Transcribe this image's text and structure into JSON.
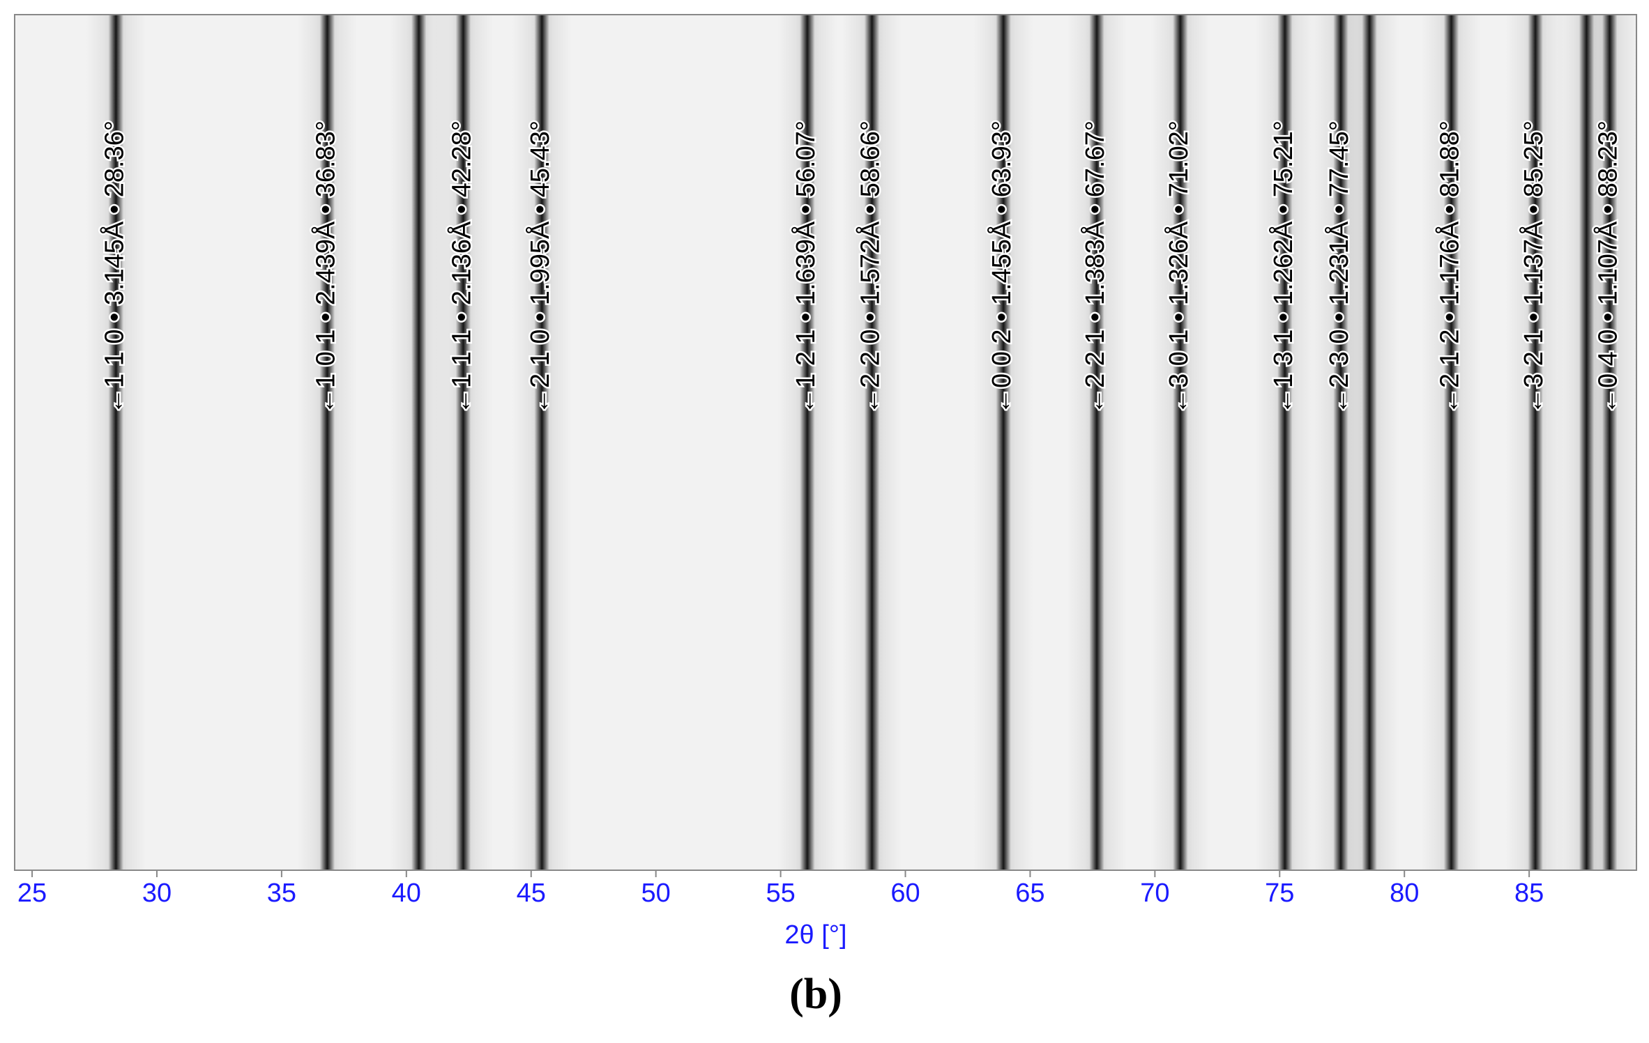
{
  "chart_data": {
    "type": "stick",
    "xlabel": "2θ [°]",
    "caption": "(b)",
    "x": [
      28.36,
      36.83,
      40.5,
      42.28,
      45.43,
      56.07,
      58.66,
      63.93,
      67.67,
      71.02,
      75.21,
      77.45,
      78.6,
      81.88,
      85.25,
      87.3,
      88.23
    ],
    "labels": [
      "←1 1 0 • 3.145Å • 28.36°",
      "←1 0 1 • 2.439Å • 36.83°",
      null,
      "←1 1 1 • 2.136Å • 42.28°",
      "←2 1 0 • 1.995Å • 45.43°",
      "←1 2 1 • 1.639Å • 56.07°",
      "←2 2 0 • 1.572Å • 58.66°",
      "←0 0 2 • 1.455Å • 63.93°",
      "←2 2 1 • 1.383Å • 67.67°",
      "←3 0 1 • 1.326Å • 71.02°",
      "←1 3 1 • 1.262Å • 75.21°",
      "←2 3 0 • 1.231Å • 77.45°",
      null,
      "←2 1 2 • 1.176Å • 81.88°",
      "←3 2 1 • 1.137Å • 85.25°",
      null,
      "←0 4 0 • 1.107Å • 88.23°"
    ],
    "color": "#111111",
    "xlim": [
      24.3,
      89.3
    ],
    "xticks": [
      25,
      30,
      35,
      40,
      45,
      50,
      55,
      60,
      65,
      70,
      75,
      80,
      85
    ],
    "tick_color": "#1a1aff"
  }
}
